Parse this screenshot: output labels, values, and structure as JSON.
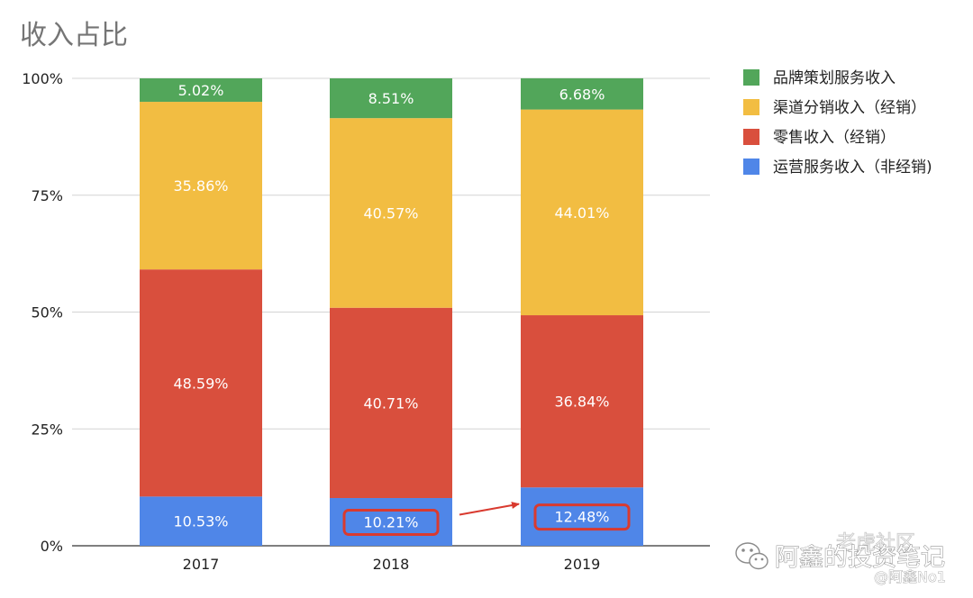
{
  "chart_data": {
    "type": "bar",
    "stacked": true,
    "percent": true,
    "title": "收入占比",
    "categories": [
      "2017",
      "2018",
      "2019"
    ],
    "series": [
      {
        "name": "运营服务收入（非经销)",
        "color": "#4f86e8",
        "values": [
          10.53,
          10.21,
          12.48
        ],
        "labels": [
          "10.53%",
          "10.21%",
          "12.48%"
        ]
      },
      {
        "name": "零售收入（经销）",
        "color": "#d94f3d",
        "values": [
          48.59,
          40.71,
          36.84
        ],
        "labels": [
          "48.59%",
          "40.71%",
          "36.84%"
        ]
      },
      {
        "name": "渠道分销收入（经销）",
        "color": "#f2bd42",
        "values": [
          35.86,
          40.57,
          44.01
        ],
        "labels": [
          "35.86%",
          "40.57%",
          "44.01%"
        ]
      },
      {
        "name": "品牌策划服务收入",
        "color": "#52a65a",
        "values": [
          5.02,
          8.51,
          6.68
        ],
        "labels": [
          "5.02%",
          "8.51%",
          "6.68%"
        ]
      }
    ],
    "ylim": [
      0,
      100
    ],
    "y_ticks": [
      "0%",
      "25%",
      "50%",
      "75%",
      "100%"
    ],
    "y_tick_values": [
      0,
      25,
      50,
      75,
      100
    ],
    "grid": true,
    "legend_position": "right",
    "annotations": {
      "highlighted": [
        "10.21%",
        "12.48%"
      ],
      "highlight_color": "#d93a2f",
      "arrow": "2018 → 2019"
    }
  },
  "watermarks": {
    "community": "老虎社区",
    "wechat_account": "阿鑫的投资笔记",
    "author": "@阿鑫No1"
  },
  "icons": [
    "wechat-icon"
  ]
}
